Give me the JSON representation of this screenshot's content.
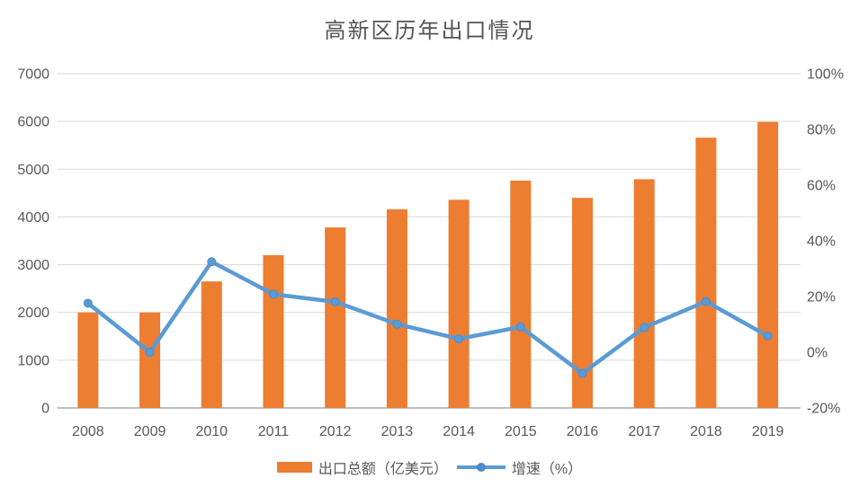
{
  "title": "高新区历年出口情况",
  "colors": {
    "bar": "#ED7D31",
    "line": "#5B9BD5",
    "marker": "#5B9BD5",
    "marker_edge": "#4f8bc9",
    "grid": "#D9D9D9",
    "axis_line": "#BFBFBF",
    "text": "#595959",
    "background": "#FFFFFF"
  },
  "legend": {
    "position": "bottom",
    "items": [
      {
        "label": "出口总额（亿美元）",
        "swatch": "bar"
      },
      {
        "label": "增速（%）",
        "swatch": "line"
      }
    ]
  },
  "chart_data": {
    "type": "combo",
    "title": "高新区历年出口情况",
    "categories": [
      "2008",
      "2009",
      "2010",
      "2011",
      "2012",
      "2013",
      "2014",
      "2015",
      "2016",
      "2017",
      "2018",
      "2019"
    ],
    "series": [
      {
        "name": "出口总额（亿美元）",
        "type": "bar",
        "axis": "left",
        "values": [
          2000,
          2000,
          2650,
          3200,
          3780,
          4160,
          4360,
          4760,
          4400,
          4790,
          5660,
          5990
        ]
      },
      {
        "name": "增速（%）",
        "type": "line",
        "axis": "right",
        "values": [
          17.6,
          0.0,
          32.5,
          20.8,
          18.1,
          10.1,
          4.8,
          9.1,
          -7.6,
          8.9,
          18.2,
          5.8
        ]
      }
    ],
    "y_left": {
      "min": 0,
      "max": 7000,
      "step": 1000,
      "ticks": [
        "0",
        "1000",
        "2000",
        "3000",
        "4000",
        "5000",
        "6000",
        "7000"
      ]
    },
    "y_right": {
      "min": -20,
      "max": 100,
      "step": 20,
      "ticks": [
        "-20%",
        "0%",
        "20%",
        "40%",
        "60%",
        "80%",
        "100%"
      ]
    },
    "grid": "horizontal",
    "legend_position": "bottom"
  }
}
